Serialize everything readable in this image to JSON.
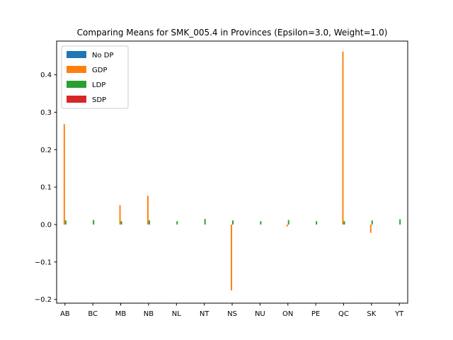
{
  "chart_data": {
    "type": "bar",
    "title": "Comparing Means for SMK_005.4 in Provinces (Epsilon=3.0, Weight=1.0)",
    "xlabel": "",
    "ylabel": "",
    "categories": [
      "AB",
      "BC",
      "MB",
      "NB",
      "NL",
      "NT",
      "NS",
      "NU",
      "ON",
      "PE",
      "QC",
      "SK",
      "YT"
    ],
    "series": [
      {
        "name": "No DP",
        "color": "#1f77b4",
        "values": [
          0,
          0,
          0,
          0,
          0,
          0,
          0,
          0,
          0,
          0,
          0,
          0,
          0
        ]
      },
      {
        "name": "GDP",
        "color": "#ff7f0e",
        "values": [
          0.268,
          0,
          0.052,
          0.077,
          0,
          0,
          -0.176,
          0,
          -0.005,
          0,
          0.462,
          -0.022,
          0
        ]
      },
      {
        "name": "LDP",
        "color": "#2ca02c",
        "values": [
          0.011,
          0.012,
          0.009,
          0.011,
          0.009,
          0.015,
          0.011,
          0.009,
          0.012,
          0.009,
          0.009,
          0.011,
          0.014
        ]
      },
      {
        "name": "SDP",
        "color": "#d62728",
        "values": [
          0,
          0,
          0,
          0,
          0,
          0,
          0,
          0,
          0,
          0,
          0,
          0,
          0
        ]
      }
    ],
    "ylim": [
      -0.21,
      0.49
    ],
    "yticks": [
      -0.2,
      -0.1,
      0.0,
      0.1,
      0.2,
      0.3,
      0.4
    ],
    "ytick_labels": [
      "−0.2",
      "−0.1",
      "0.0",
      "0.1",
      "0.2",
      "0.3",
      "0.4"
    ],
    "grid": false,
    "legend_position": "top-left"
  }
}
